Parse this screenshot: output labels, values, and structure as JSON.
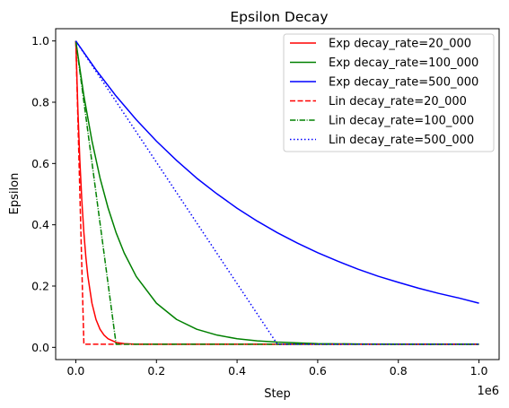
{
  "chart_data": {
    "type": "line",
    "title": "Epsilon Decay",
    "xlabel": "Step",
    "ylabel": "Epsilon",
    "x_offset_label": "1e6",
    "xlim": [
      -0.05,
      1.05
    ],
    "ylim": [
      -0.04,
      1.04
    ],
    "x_ticks": [
      0.0,
      0.2,
      0.4,
      0.6,
      0.8,
      1.0
    ],
    "x_tick_labels": [
      "0.0",
      "0.2",
      "0.4",
      "0.6",
      "0.8",
      "1.0"
    ],
    "y_ticks": [
      0.0,
      0.2,
      0.4,
      0.6,
      0.8,
      1.0
    ],
    "y_tick_labels": [
      "0.0",
      "0.2",
      "0.4",
      "0.6",
      "0.8",
      "1.0"
    ],
    "grid": false,
    "legend_position": "upper-right",
    "series": [
      {
        "name": "Exp decay_rate=20_000",
        "color": "#ff0000",
        "style": "solid",
        "x": [
          0,
          0.005,
          0.01,
          0.015,
          0.02,
          0.025,
          0.03,
          0.04,
          0.05,
          0.06,
          0.07,
          0.08,
          0.1,
          0.12,
          0.15,
          0.2,
          0.3,
          0.5,
          0.75,
          1.0
        ],
        "y": [
          1.0,
          0.781,
          0.61,
          0.477,
          0.374,
          0.293,
          0.231,
          0.144,
          0.091,
          0.059,
          0.04,
          0.028,
          0.016,
          0.012,
          0.01,
          0.01,
          0.01,
          0.01,
          0.01,
          0.01
        ]
      },
      {
        "name": "Exp decay_rate=100_000",
        "color": "#008000",
        "style": "solid",
        "x": [
          0,
          0.02,
          0.04,
          0.06,
          0.08,
          0.1,
          0.12,
          0.15,
          0.2,
          0.25,
          0.3,
          0.35,
          0.4,
          0.45,
          0.5,
          0.6,
          0.7,
          0.8,
          0.9,
          1.0
        ],
        "y": [
          1.0,
          0.821,
          0.674,
          0.553,
          0.455,
          0.374,
          0.308,
          0.231,
          0.144,
          0.091,
          0.059,
          0.04,
          0.028,
          0.021,
          0.017,
          0.012,
          0.011,
          0.01,
          0.01,
          0.01
        ]
      },
      {
        "name": "Exp decay_rate=500_000",
        "color": "#0000ff",
        "style": "solid",
        "x": [
          0,
          0.05,
          0.1,
          0.15,
          0.2,
          0.25,
          0.3,
          0.35,
          0.4,
          0.45,
          0.5,
          0.55,
          0.6,
          0.65,
          0.7,
          0.75,
          0.8,
          0.85,
          0.9,
          0.95,
          1.0
        ],
        "y": [
          1.0,
          0.906,
          0.82,
          0.743,
          0.673,
          0.61,
          0.552,
          0.501,
          0.454,
          0.412,
          0.374,
          0.34,
          0.309,
          0.281,
          0.255,
          0.232,
          0.212,
          0.193,
          0.176,
          0.161,
          0.144
        ]
      },
      {
        "name": "Lin decay_rate=20_000",
        "color": "#ff0000",
        "style": "dashed",
        "x": [
          0,
          0.02,
          1.0
        ],
        "y": [
          1.0,
          0.01,
          0.01
        ]
      },
      {
        "name": "Lin decay_rate=100_000",
        "color": "#008000",
        "style": "dashdot",
        "x": [
          0,
          0.1,
          1.0
        ],
        "y": [
          1.0,
          0.01,
          0.01
        ]
      },
      {
        "name": "Lin decay_rate=500_000",
        "color": "#0000ff",
        "style": "dotted",
        "x": [
          0,
          0.5,
          1.0
        ],
        "y": [
          1.0,
          0.01,
          0.01
        ]
      }
    ]
  }
}
